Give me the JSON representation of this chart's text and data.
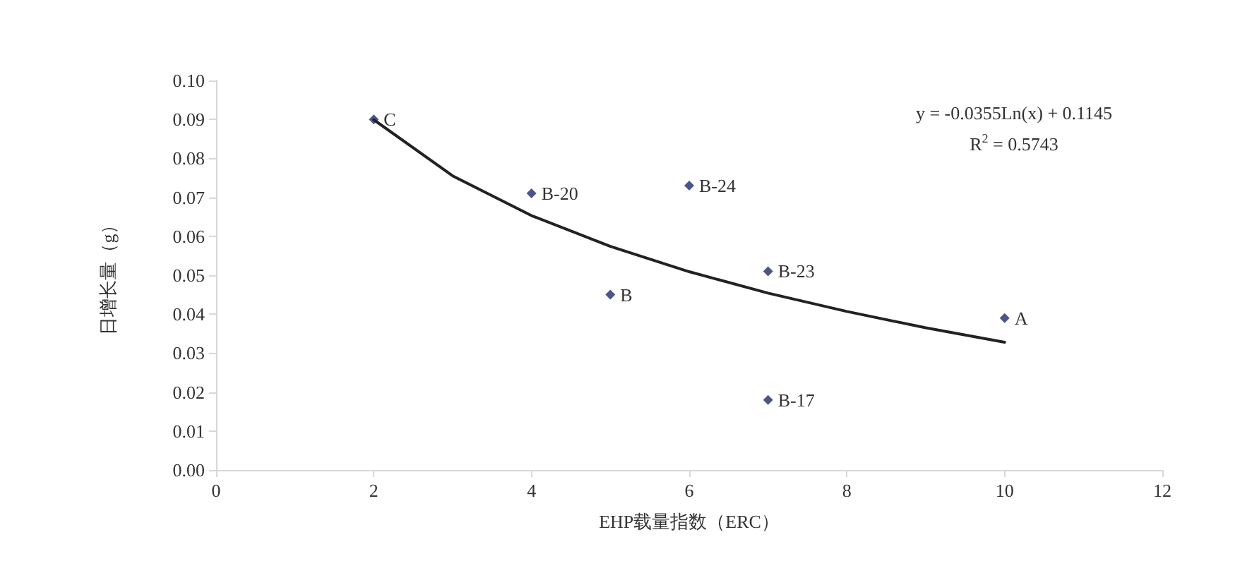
{
  "chart_data": {
    "type": "scatter",
    "xlabel": "EHP载量指数（ERC）",
    "ylabel": "日增长量（g）",
    "series": [
      {
        "color": "#1f2a6b",
        "x": [
          2,
          4,
          5,
          6,
          7,
          7,
          10
        ],
        "values": [
          0.09,
          0.071,
          0.045,
          0.073,
          0.051,
          0.018,
          0.039
        ]
      },
      {
        "type": "line",
        "color": "#222222",
        "x": [
          2,
          3,
          4,
          5,
          6,
          7,
          8,
          9,
          10
        ],
        "values": [
          0.0899,
          0.0755,
          0.0653,
          0.0574,
          0.0509,
          0.0454,
          0.0407,
          0.0365,
          0.0328
        ],
        "marker": "none",
        "line_style": "solid"
      }
    ],
    "marker": "diamond",
    "xlim": [
      0,
      12
    ],
    "xticks": [
      0,
      2,
      4,
      6,
      8,
      10,
      12
    ],
    "ylim": [
      0,
      0.1
    ],
    "yticks": [
      {
        "value": 0,
        "label": "0.00"
      },
      {
        "value": 0.01,
        "label": "0.01"
      },
      {
        "value": 0.02,
        "label": "0.02"
      },
      {
        "value": 0.03,
        "label": "0.03"
      },
      {
        "value": 0.04,
        "label": "0.04"
      },
      {
        "value": 0.05,
        "label": "0.05"
      },
      {
        "value": 0.06,
        "label": "0.06"
      },
      {
        "value": 0.07,
        "label": "0.07"
      },
      {
        "value": 0.08,
        "label": "0.08"
      },
      {
        "value": 0.09,
        "label": "0.09"
      },
      {
        "value": 0.1,
        "label": "0.10"
      }
    ],
    "grid": false,
    "annotations": [
      {
        "text": "C",
        "x": 2,
        "y": 0.09
      },
      {
        "text": "B-20",
        "x": 4,
        "y": 0.071
      },
      {
        "text": "B",
        "x": 5,
        "y": 0.045
      },
      {
        "text": "B-24",
        "x": 6,
        "y": 0.073
      },
      {
        "text": "B-23",
        "x": 7,
        "y": 0.051
      },
      {
        "text": "B-17",
        "x": 7,
        "y": 0.018
      },
      {
        "text": "A",
        "x": 10,
        "y": 0.039
      },
      "y = -0.0355Ln(x) + 0.1145",
      "R$^{2}$ = 0.5743"
    ]
  }
}
